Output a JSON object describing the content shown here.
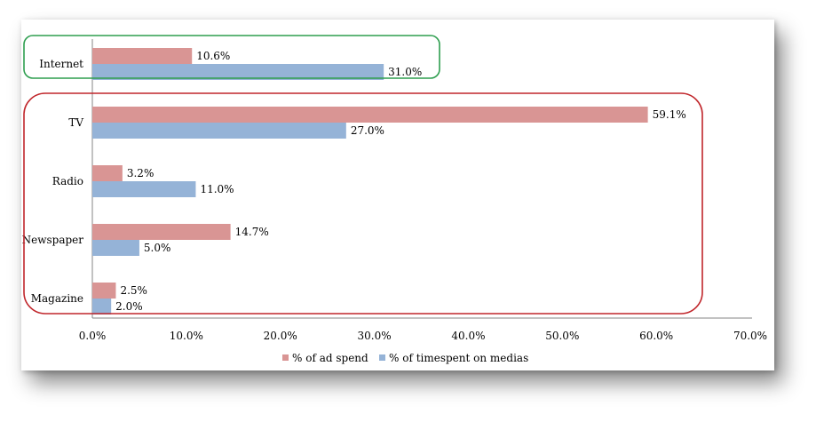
{
  "chart_data": {
    "type": "bar",
    "orientation": "horizontal",
    "categories": [
      "Internet",
      "TV",
      "Radio",
      "Newspaper",
      "Magazine"
    ],
    "series": [
      {
        "name": "% of ad spend",
        "color": "#d99594",
        "values": [
          10.6,
          59.1,
          3.2,
          14.7,
          2.5
        ],
        "labels": [
          "10.6%",
          "59.1%",
          "3.2%",
          "14.7%",
          "2.5%"
        ]
      },
      {
        "name": "% of timespent on medias",
        "color": "#95b3d7",
        "values": [
          31.0,
          27.0,
          11.0,
          5.0,
          2.0
        ],
        "labels": [
          "31.0%",
          "27.0%",
          "11.0%",
          "5.0%",
          "2.0%"
        ]
      }
    ],
    "xlim": [
      0,
      70
    ],
    "xticks": [
      "0.0%",
      "10.0%",
      "20.0%",
      "30.0%",
      "40.0%",
      "50.0%",
      "60.0%",
      "70.0%"
    ],
    "legend_position": "bottom",
    "highlight_groups": [
      {
        "categories": [
          "Internet"
        ],
        "color": "#2e9e4f"
      },
      {
        "categories": [
          "TV",
          "Radio",
          "Newspaper",
          "Magazine"
        ],
        "color": "#c0262b"
      }
    ]
  }
}
